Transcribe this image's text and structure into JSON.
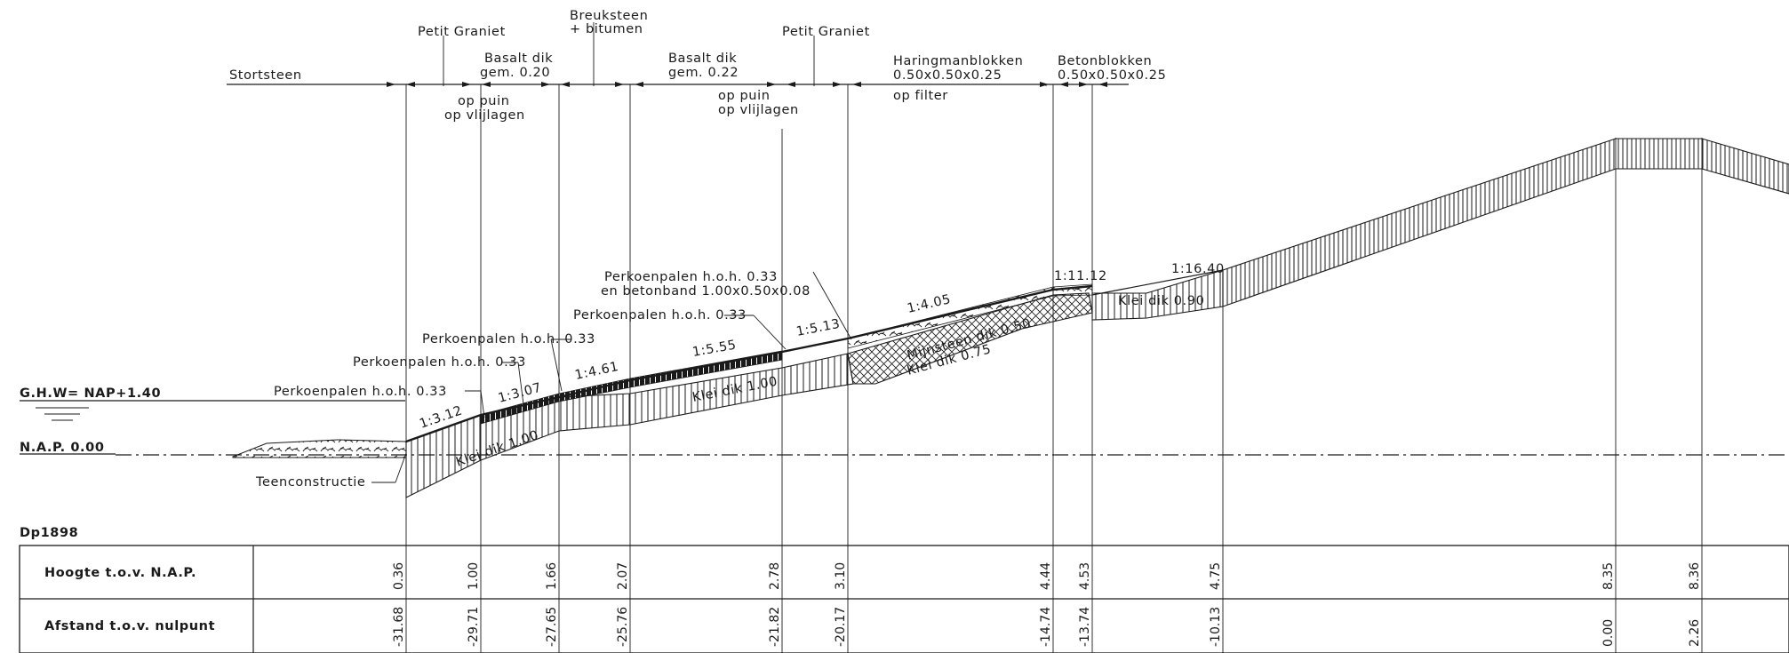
{
  "materials": {
    "stortsteen": "Stortsteen",
    "petit_graniet_1": "Petit Graniet",
    "basalt_1_line1": "Basalt dik",
    "basalt_1_line2": "gem. 0.20",
    "breuksteen_line1": "Breuksteen",
    "breuksteen_line2": "+ bitumen",
    "basalt_2_line1": "Basalt dik",
    "basalt_2_line2": "gem. 0.22",
    "petit_graniet_2": "Petit Graniet",
    "haringman_line1": "Haringmanblokken",
    "haringman_line2": "0.50x0.50x0.25",
    "betonblokken_line1": "Betonblokken",
    "betonblokken_line2": "0.50x0.50x0.25",
    "op_puin_1": "op puin",
    "op_vlijlagen_1": "op vlijlagen",
    "op_puin_2": "op puin",
    "op_vlijlagen_2": "op vlijlagen",
    "op_filter": "op filter"
  },
  "levels": {
    "ghw": "G.H.W= NAP+1.40",
    "nap": "N.A.P. 0.00"
  },
  "callouts": {
    "perk_1": "Perkoenpalen h.o.h. 0.33",
    "perk_2": "Perkoenpalen h.o.h. 0.33",
    "perk_3": "Perkoenpalen h.o.h. 0.33",
    "perk_4": "Perkoenpalen h.o.h. 0.33",
    "perk_5_line1": "Perkoenpalen h.o.h. 0.33",
    "perk_5_line2": "en betonband 1.00x0.50x0.08",
    "teen": "Teenconstructie"
  },
  "slopes": {
    "s1": "1:3.12",
    "s2": "1:3.07",
    "s3": "1:4.61",
    "s4": "1:5.55",
    "s5": "1:5.13",
    "s6": "1:4.05",
    "s7": "1:11.12",
    "s8": "1:16.40"
  },
  "layers": {
    "klei_1": "Klei dik 1.00",
    "klei_2": "Klei dik 1.00",
    "mijnsteen": "Mijnsteen dik 0.50",
    "klei_3": "Klei dik 0.75",
    "klei_4": "Klei dik 0.90"
  },
  "table": {
    "id": "Dp1898",
    "row1_label": "Hoogte t.o.v. N.A.P.",
    "row2_label": "Afstand t.o.v. nulpunt",
    "hoogte": [
      "0.36",
      "1.00",
      "1.66",
      "2.07",
      "2.78",
      "3.10",
      "4.44",
      "4.53",
      "4.75",
      "8.35",
      "8.36"
    ],
    "afstand": [
      "-31.68",
      "-29.71",
      "-27.65",
      "-25.76",
      "-21.82",
      "-20.17",
      "-14.74",
      "-13.74",
      "-10.13",
      "0.00",
      "2.26"
    ]
  }
}
